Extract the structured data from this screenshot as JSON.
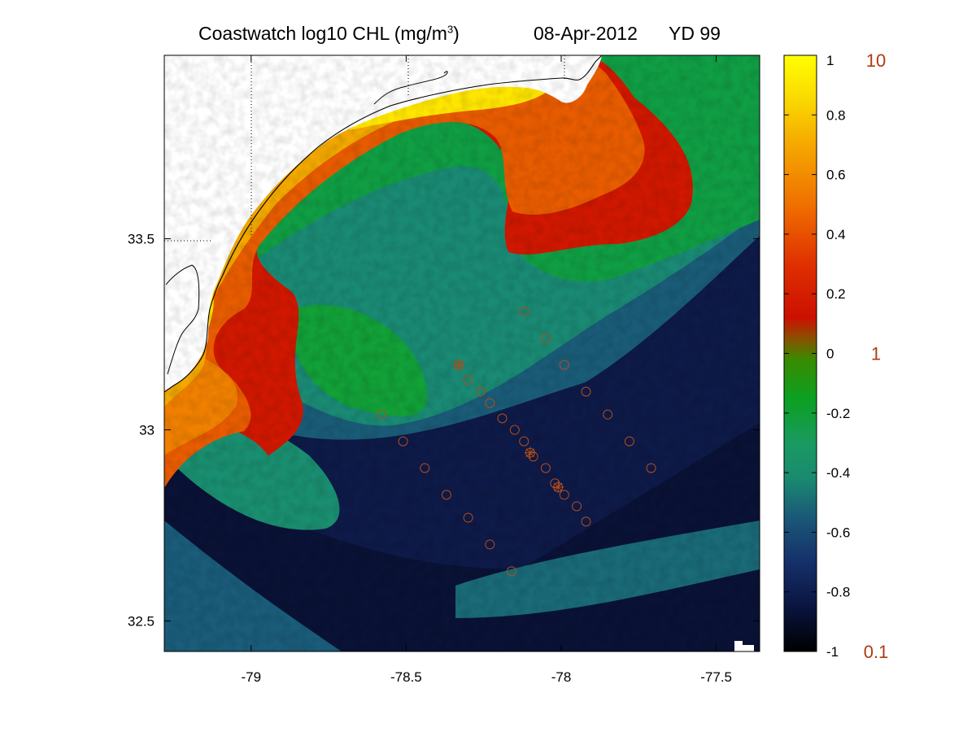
{
  "title": {
    "left": "Coastwatch  log10  CHL (mg/m",
    "superscript": "3",
    "close": ")",
    "date": "08-Apr-2012",
    "yearday": "YD 99"
  },
  "chart_data": {
    "type": "heatmap",
    "variable": "log10 CHL",
    "units": "mg/m3",
    "date": "08-Apr-2012",
    "year_day": 99,
    "xlim": [
      -79.28,
      -77.36
    ],
    "ylim": [
      32.42,
      33.98
    ],
    "xticks": [
      -79,
      -78.5,
      -78,
      -77.5
    ],
    "xtick_labels": [
      "-79",
      "-78.5",
      "-78",
      "-77.5"
    ],
    "yticks": [
      32.5,
      33,
      33.5
    ],
    "ytick_labels": [
      "32.5",
      "33",
      "33.5"
    ],
    "grid": "dotted, land only",
    "colorbar": {
      "range": [
        -1,
        1
      ],
      "ticks": [
        1,
        0.8,
        0.6,
        0.4,
        0.2,
        0,
        -0.2,
        -0.4,
        -0.6,
        -0.8,
        -1
      ],
      "tick_labels": [
        "1",
        "0.8",
        "0.6",
        "0.4",
        "0.2",
        "0",
        "-0.2",
        "-0.4",
        "-0.6",
        "-0.8",
        "-1"
      ],
      "linear_labels": [
        {
          "value": 1,
          "text": "10"
        },
        {
          "value": 0,
          "text": "1"
        },
        {
          "value": -1,
          "text": "0.1"
        }
      ],
      "colormap": [
        [
          -1.0,
          "#000000"
        ],
        [
          -0.85,
          "#0a1440"
        ],
        [
          -0.7,
          "#15306a"
        ],
        [
          -0.55,
          "#1a5878"
        ],
        [
          -0.42,
          "#1a8a70"
        ],
        [
          -0.3,
          "#1a9a60"
        ],
        [
          -0.15,
          "#0ba020"
        ],
        [
          -0.02,
          "#3a8a00"
        ],
        [
          0.05,
          "#8a5000"
        ],
        [
          0.12,
          "#cc1000"
        ],
        [
          0.3,
          "#e03000"
        ],
        [
          0.5,
          "#f07000"
        ],
        [
          0.7,
          "#f5a800"
        ],
        [
          0.85,
          "#fad800"
        ],
        [
          1.0,
          "#ffff00"
        ]
      ]
    },
    "colors": {
      "land": "#ffffff",
      "coastline": "#000000",
      "station_marker": "#b34d1a"
    },
    "stations": [
      {
        "lon": -78.12,
        "lat": 33.31,
        "marker": "circle"
      },
      {
        "lon": -78.05,
        "lat": 33.24,
        "marker": "circle"
      },
      {
        "lon": -77.99,
        "lat": 33.17,
        "marker": "circle"
      },
      {
        "lon": -77.92,
        "lat": 33.1,
        "marker": "circle"
      },
      {
        "lon": -77.85,
        "lat": 33.04,
        "marker": "circle"
      },
      {
        "lon": -77.78,
        "lat": 32.97,
        "marker": "circle"
      },
      {
        "lon": -77.71,
        "lat": 32.9,
        "marker": "circle"
      },
      {
        "lon": -78.33,
        "lat": 33.17,
        "marker": "circle-star"
      },
      {
        "lon": -78.3,
        "lat": 33.13,
        "marker": "circle"
      },
      {
        "lon": -78.26,
        "lat": 33.1,
        "marker": "circle"
      },
      {
        "lon": -78.23,
        "lat": 33.07,
        "marker": "circle"
      },
      {
        "lon": -78.19,
        "lat": 33.03,
        "marker": "circle"
      },
      {
        "lon": -78.15,
        "lat": 33.0,
        "marker": "circle"
      },
      {
        "lon": -78.12,
        "lat": 32.97,
        "marker": "circle"
      },
      {
        "lon": -78.1,
        "lat": 32.94,
        "marker": "circle-star"
      },
      {
        "lon": -78.09,
        "lat": 32.93,
        "marker": "circle"
      },
      {
        "lon": -78.05,
        "lat": 32.9,
        "marker": "circle"
      },
      {
        "lon": -78.02,
        "lat": 32.86,
        "marker": "circle"
      },
      {
        "lon": -78.01,
        "lat": 32.85,
        "marker": "circle-star"
      },
      {
        "lon": -77.99,
        "lat": 32.83,
        "marker": "circle"
      },
      {
        "lon": -77.95,
        "lat": 32.8,
        "marker": "circle"
      },
      {
        "lon": -77.92,
        "lat": 32.76,
        "marker": "circle"
      },
      {
        "lon": -78.58,
        "lat": 33.04,
        "marker": "circle"
      },
      {
        "lon": -78.51,
        "lat": 32.97,
        "marker": "circle"
      },
      {
        "lon": -78.44,
        "lat": 32.9,
        "marker": "circle"
      },
      {
        "lon": -78.37,
        "lat": 32.83,
        "marker": "circle"
      },
      {
        "lon": -78.3,
        "lat": 32.77,
        "marker": "circle"
      },
      {
        "lon": -78.23,
        "lat": 32.7,
        "marker": "circle"
      },
      {
        "lon": -78.16,
        "lat": 32.63,
        "marker": "circle"
      }
    ]
  }
}
